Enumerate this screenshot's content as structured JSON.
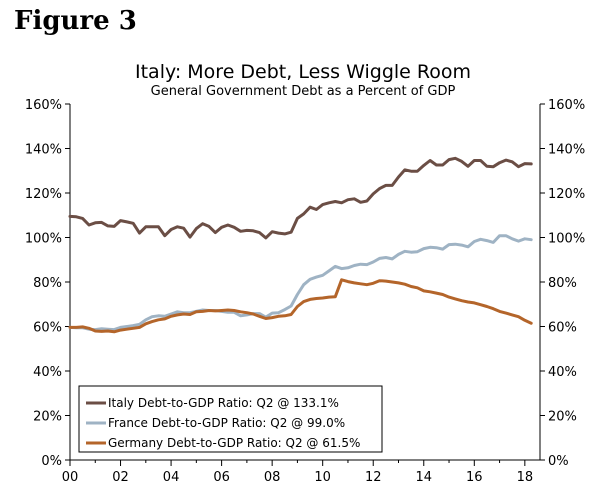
{
  "figure_label": "Figure 3",
  "chart_data": {
    "type": "line",
    "title": "Italy: More Debt, Less Wiggle Room",
    "subtitle": "General Government Debt as a Percent of GDP",
    "xlabel": "",
    "ylabel": "",
    "xlim": [
      2000.0,
      2018.6
    ],
    "ylim": [
      0,
      160
    ],
    "x_ticks": [
      2000,
      2002,
      2004,
      2006,
      2008,
      2010,
      2012,
      2014,
      2016,
      2018
    ],
    "x_tick_labels": [
      "00",
      "02",
      "04",
      "06",
      "08",
      "10",
      "12",
      "14",
      "16",
      "18"
    ],
    "y_ticks": [
      0,
      20,
      40,
      60,
      80,
      100,
      120,
      140,
      160
    ],
    "y_tick_labels_left": [
      "0%",
      "20%",
      "40%",
      "60%",
      "80%",
      "100%",
      "120%",
      "140%",
      "160%"
    ],
    "y_tick_labels_right": [
      "0%",
      "20%",
      "40%",
      "60%",
      "80%",
      "100%",
      "120%",
      "140%",
      "160%"
    ],
    "legend_position": "bottom-left",
    "grid": false,
    "series": [
      {
        "name": "Italy Debt-to-GDP Ratio: Q2 @ 133.1%",
        "color": "#6b4e45",
        "points": [
          [
            2000.0,
            109.5
          ],
          [
            2000.25,
            109.3
          ],
          [
            2000.5,
            108.6
          ],
          [
            2000.75,
            105.6
          ],
          [
            2001.0,
            106.6
          ],
          [
            2001.25,
            106.8
          ],
          [
            2001.5,
            105.2
          ],
          [
            2001.75,
            105.0
          ],
          [
            2002.0,
            107.6
          ],
          [
            2002.25,
            107.0
          ],
          [
            2002.5,
            106.4
          ],
          [
            2002.75,
            102.0
          ],
          [
            2003.0,
            104.8
          ],
          [
            2003.25,
            104.8
          ],
          [
            2003.5,
            104.8
          ],
          [
            2003.75,
            100.8
          ],
          [
            2004.0,
            103.6
          ],
          [
            2004.25,
            104.8
          ],
          [
            2004.5,
            104.2
          ],
          [
            2004.75,
            100.2
          ],
          [
            2005.0,
            104.0
          ],
          [
            2005.25,
            106.2
          ],
          [
            2005.5,
            105.0
          ],
          [
            2005.75,
            102.2
          ],
          [
            2006.0,
            104.6
          ],
          [
            2006.25,
            105.6
          ],
          [
            2006.5,
            104.6
          ],
          [
            2006.75,
            102.8
          ],
          [
            2007.0,
            103.2
          ],
          [
            2007.25,
            103.0
          ],
          [
            2007.5,
            102.2
          ],
          [
            2007.75,
            99.8
          ],
          [
            2008.0,
            102.6
          ],
          [
            2008.25,
            102.0
          ],
          [
            2008.5,
            101.6
          ],
          [
            2008.75,
            102.4
          ],
          [
            2009.0,
            108.6
          ],
          [
            2009.25,
            110.6
          ],
          [
            2009.5,
            113.6
          ],
          [
            2009.75,
            112.6
          ],
          [
            2010.0,
            114.8
          ],
          [
            2010.25,
            115.6
          ],
          [
            2010.5,
            116.2
          ],
          [
            2010.75,
            115.6
          ],
          [
            2011.0,
            117.0
          ],
          [
            2011.25,
            117.4
          ],
          [
            2011.5,
            115.8
          ],
          [
            2011.75,
            116.4
          ],
          [
            2012.0,
            119.6
          ],
          [
            2012.25,
            122.0
          ],
          [
            2012.5,
            123.4
          ],
          [
            2012.75,
            123.4
          ],
          [
            2013.0,
            127.2
          ],
          [
            2013.25,
            130.4
          ],
          [
            2013.5,
            129.8
          ],
          [
            2013.75,
            129.8
          ],
          [
            2014.0,
            132.4
          ],
          [
            2014.25,
            134.6
          ],
          [
            2014.5,
            132.6
          ],
          [
            2014.75,
            132.6
          ],
          [
            2015.0,
            135.0
          ],
          [
            2015.25,
            135.6
          ],
          [
            2015.5,
            134.2
          ],
          [
            2015.75,
            132.0
          ],
          [
            2016.0,
            134.6
          ],
          [
            2016.25,
            134.6
          ],
          [
            2016.5,
            132.0
          ],
          [
            2016.75,
            131.8
          ],
          [
            2017.0,
            133.6
          ],
          [
            2017.25,
            134.8
          ],
          [
            2017.5,
            134.0
          ],
          [
            2017.75,
            131.8
          ],
          [
            2018.0,
            133.2
          ],
          [
            2018.25,
            133.1
          ]
        ]
      },
      {
        "name": "France Debt-to-GDP Ratio: Q2 @ 99.0%",
        "color": "#9fb3c4",
        "points": [
          [
            2000.0,
            59.6
          ],
          [
            2000.25,
            59.4
          ],
          [
            2000.5,
            59.4
          ],
          [
            2000.75,
            58.8
          ],
          [
            2001.0,
            58.6
          ],
          [
            2001.25,
            59.0
          ],
          [
            2001.5,
            58.8
          ],
          [
            2001.75,
            58.6
          ],
          [
            2002.0,
            59.6
          ],
          [
            2002.25,
            60.0
          ],
          [
            2002.5,
            60.4
          ],
          [
            2002.75,
            61.0
          ],
          [
            2003.0,
            63.0
          ],
          [
            2003.25,
            64.4
          ],
          [
            2003.5,
            64.8
          ],
          [
            2003.75,
            64.6
          ],
          [
            2004.0,
            65.6
          ],
          [
            2004.25,
            66.6
          ],
          [
            2004.5,
            66.2
          ],
          [
            2004.75,
            66.2
          ],
          [
            2005.0,
            66.8
          ],
          [
            2005.25,
            67.4
          ],
          [
            2005.5,
            67.2
          ],
          [
            2005.75,
            67.2
          ],
          [
            2006.0,
            66.8
          ],
          [
            2006.25,
            66.4
          ],
          [
            2006.5,
            66.4
          ],
          [
            2006.75,
            64.8
          ],
          [
            2007.0,
            65.2
          ],
          [
            2007.25,
            65.8
          ],
          [
            2007.5,
            65.8
          ],
          [
            2007.75,
            64.2
          ],
          [
            2008.0,
            66.0
          ],
          [
            2008.25,
            66.2
          ],
          [
            2008.5,
            67.6
          ],
          [
            2008.75,
            69.2
          ],
          [
            2009.0,
            74.4
          ],
          [
            2009.25,
            78.8
          ],
          [
            2009.5,
            81.2
          ],
          [
            2009.75,
            82.2
          ],
          [
            2010.0,
            83.0
          ],
          [
            2010.25,
            85.0
          ],
          [
            2010.5,
            87.0
          ],
          [
            2010.75,
            86.0
          ],
          [
            2011.0,
            86.4
          ],
          [
            2011.25,
            87.4
          ],
          [
            2011.5,
            88.0
          ],
          [
            2011.75,
            87.8
          ],
          [
            2012.0,
            89.0
          ],
          [
            2012.25,
            90.6
          ],
          [
            2012.5,
            91.0
          ],
          [
            2012.75,
            90.4
          ],
          [
            2013.0,
            92.4
          ],
          [
            2013.25,
            93.8
          ],
          [
            2013.5,
            93.4
          ],
          [
            2013.75,
            93.6
          ],
          [
            2014.0,
            95.0
          ],
          [
            2014.25,
            95.6
          ],
          [
            2014.5,
            95.4
          ],
          [
            2014.75,
            94.8
          ],
          [
            2015.0,
            96.8
          ],
          [
            2015.25,
            97.0
          ],
          [
            2015.5,
            96.6
          ],
          [
            2015.75,
            95.8
          ],
          [
            2016.0,
            98.2
          ],
          [
            2016.25,
            99.2
          ],
          [
            2016.5,
            98.6
          ],
          [
            2016.75,
            97.8
          ],
          [
            2017.0,
            100.8
          ],
          [
            2017.25,
            100.8
          ],
          [
            2017.5,
            99.4
          ],
          [
            2017.75,
            98.4
          ],
          [
            2018.0,
            99.4
          ],
          [
            2018.25,
            99.0
          ]
        ]
      },
      {
        "name": "Germany Debt-to-GDP Ratio: Q2 @ 61.5%",
        "color": "#b4652a",
        "points": [
          [
            2000.0,
            59.6
          ],
          [
            2000.25,
            59.6
          ],
          [
            2000.5,
            59.8
          ],
          [
            2000.75,
            59.2
          ],
          [
            2001.0,
            58.0
          ],
          [
            2001.25,
            57.8
          ],
          [
            2001.5,
            58.0
          ],
          [
            2001.75,
            57.6
          ],
          [
            2002.0,
            58.4
          ],
          [
            2002.25,
            58.8
          ],
          [
            2002.5,
            59.2
          ],
          [
            2002.75,
            59.6
          ],
          [
            2003.0,
            61.2
          ],
          [
            2003.25,
            62.2
          ],
          [
            2003.5,
            63.0
          ],
          [
            2003.75,
            63.4
          ],
          [
            2004.0,
            64.6
          ],
          [
            2004.25,
            65.2
          ],
          [
            2004.5,
            65.6
          ],
          [
            2004.75,
            65.4
          ],
          [
            2005.0,
            66.6
          ],
          [
            2005.25,
            66.8
          ],
          [
            2005.5,
            67.2
          ],
          [
            2005.75,
            67.0
          ],
          [
            2006.0,
            67.2
          ],
          [
            2006.25,
            67.4
          ],
          [
            2006.5,
            67.2
          ],
          [
            2006.75,
            66.6
          ],
          [
            2007.0,
            66.2
          ],
          [
            2007.25,
            65.6
          ],
          [
            2007.5,
            64.6
          ],
          [
            2007.75,
            63.6
          ],
          [
            2008.0,
            64.0
          ],
          [
            2008.25,
            64.6
          ],
          [
            2008.5,
            64.8
          ],
          [
            2008.75,
            65.4
          ],
          [
            2009.0,
            69.0
          ],
          [
            2009.25,
            71.2
          ],
          [
            2009.5,
            72.2
          ],
          [
            2009.75,
            72.6
          ],
          [
            2010.0,
            72.8
          ],
          [
            2010.25,
            73.2
          ],
          [
            2010.5,
            73.4
          ],
          [
            2010.75,
            81.0
          ],
          [
            2011.0,
            80.2
          ],
          [
            2011.25,
            79.6
          ],
          [
            2011.5,
            79.2
          ],
          [
            2011.75,
            78.8
          ],
          [
            2012.0,
            79.4
          ],
          [
            2012.25,
            80.6
          ],
          [
            2012.5,
            80.4
          ],
          [
            2012.75,
            80.0
          ],
          [
            2013.0,
            79.6
          ],
          [
            2013.25,
            79.0
          ],
          [
            2013.5,
            78.0
          ],
          [
            2013.75,
            77.4
          ],
          [
            2014.0,
            76.0
          ],
          [
            2014.25,
            75.6
          ],
          [
            2014.5,
            75.0
          ],
          [
            2014.75,
            74.4
          ],
          [
            2015.0,
            73.2
          ],
          [
            2015.25,
            72.4
          ],
          [
            2015.5,
            71.6
          ],
          [
            2015.75,
            71.0
          ],
          [
            2016.0,
            70.6
          ],
          [
            2016.25,
            69.8
          ],
          [
            2016.5,
            69.0
          ],
          [
            2016.75,
            68.0
          ],
          [
            2017.0,
            66.8
          ],
          [
            2017.25,
            66.0
          ],
          [
            2017.5,
            65.2
          ],
          [
            2017.75,
            64.4
          ],
          [
            2018.0,
            62.8
          ],
          [
            2018.25,
            61.5
          ]
        ]
      }
    ]
  }
}
